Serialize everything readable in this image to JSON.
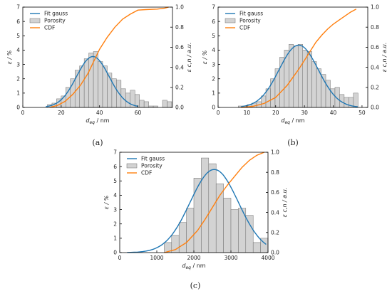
{
  "chart_data": [
    {
      "type": "bar",
      "panel_label": "(a)",
      "xlabel_base": "d",
      "xlabel_sub": "eq",
      "xlabel_unit": " / nm",
      "ylabel_left": "ε / %",
      "ylabel_right": "ε c,n / a.u.",
      "xlim": [
        0,
        78
      ],
      "ylim_left": [
        0,
        7
      ],
      "ylim_right": [
        0,
        1.0
      ],
      "xticks": [
        0,
        20,
        40,
        60
      ],
      "yticks_left": [
        0,
        1,
        2,
        3,
        4,
        5,
        6,
        7
      ],
      "yticks_right": [
        "0.0",
        "0.2",
        "0.4",
        "0.6",
        "0.8",
        "1.0"
      ],
      "legend": [
        "Fit gauss",
        "Porosity",
        "CDF"
      ],
      "legend_position": "top-left",
      "bin_width": 2.4,
      "bins_x": [
        14.0,
        16.4,
        18.8,
        21.2,
        23.6,
        26.0,
        28.4,
        30.8,
        33.2,
        35.6,
        38.0,
        40.4,
        42.8,
        45.2,
        47.6,
        50.0,
        52.4,
        54.8,
        57.2,
        59.6,
        62.0,
        64.4,
        66.8,
        69.2,
        71.6,
        74.0,
        76.4
      ],
      "porosity": [
        0.2,
        0.3,
        0.6,
        0.8,
        1.4,
        2.0,
        2.6,
        2.9,
        3.4,
        3.8,
        3.9,
        3.2,
        2.9,
        2.4,
        2.0,
        1.9,
        1.3,
        1.0,
        1.2,
        0.9,
        0.5,
        0.4,
        0.1,
        0.1,
        0.0,
        0.5,
        0.4
      ],
      "gauss": {
        "mu": 36.5,
        "sigma": 8.5,
        "amp": 3.55,
        "xmin": 12,
        "xmax": 60
      },
      "cdf_x": [
        14,
        18,
        22,
        26,
        30,
        34,
        38,
        40,
        44,
        48,
        52,
        56,
        60,
        64,
        70,
        74,
        76
      ],
      "cdf": [
        0.0,
        0.02,
        0.06,
        0.13,
        0.22,
        0.34,
        0.5,
        0.58,
        0.7,
        0.8,
        0.88,
        0.93,
        0.97,
        0.975,
        0.98,
        0.99,
        1.0
      ]
    },
    {
      "type": "bar",
      "panel_label": "(b)",
      "xlabel_base": "d",
      "xlabel_sub": "eq",
      "xlabel_unit": " / nm",
      "ylabel_left": "ε / %",
      "ylabel_right": "ε c,n / a.u.",
      "xlim": [
        0,
        52
      ],
      "ylim_left": [
        0,
        7
      ],
      "ylim_right": [
        0,
        1.0
      ],
      "xticks": [
        0,
        10,
        20,
        30,
        40,
        50
      ],
      "yticks_left": [
        0,
        1,
        2,
        3,
        4,
        5,
        6,
        7
      ],
      "yticks_right": [
        "0.0",
        "0.2",
        "0.4",
        "0.6",
        "0.8",
        "1.0"
      ],
      "legend": [
        "Fit gauss",
        "Porosity",
        "CDF"
      ],
      "legend_position": "top-left",
      "bin_width": 1.6,
      "bins_x": [
        7.8,
        9.4,
        11.0,
        12.6,
        14.2,
        15.8,
        17.4,
        19.0,
        20.6,
        22.2,
        23.8,
        25.4,
        27.0,
        28.6,
        30.2,
        31.8,
        33.4,
        35.0,
        36.6,
        38.2,
        39.8,
        41.4,
        43.0,
        44.6,
        46.2,
        47.8
      ],
      "porosity": [
        0.1,
        0.1,
        0.2,
        0.3,
        0.4,
        0.8,
        1.3,
        2.0,
        2.7,
        3.5,
        4.0,
        4.4,
        4.3,
        4.4,
        4.0,
        3.9,
        3.2,
        2.7,
        2.3,
        1.9,
        1.3,
        1.4,
        0.9,
        0.7,
        0.7,
        1.0
      ],
      "gauss": {
        "mu": 28.0,
        "sigma": 6.8,
        "amp": 4.35,
        "xmin": 8,
        "xmax": 48.5
      },
      "cdf_x": [
        8,
        12,
        16,
        20,
        24,
        26,
        28,
        30,
        32,
        34,
        36,
        38,
        40,
        42,
        44,
        46,
        48
      ],
      "cdf": [
        0.0,
        0.01,
        0.04,
        0.1,
        0.22,
        0.3,
        0.38,
        0.47,
        0.56,
        0.65,
        0.72,
        0.78,
        0.83,
        0.87,
        0.91,
        0.95,
        0.98
      ]
    },
    {
      "type": "bar",
      "panel_label": "(c)",
      "xlabel_base": "d",
      "xlabel_sub": "eq",
      "xlabel_unit": " / nm",
      "ylabel_left": "ε / %",
      "ylabel_right": "ε c,n / a.u.",
      "xlim": [
        0,
        4000
      ],
      "ylim_left": [
        0,
        7
      ],
      "ylim_right": [
        0,
        1.0
      ],
      "xticks": [
        0,
        1000,
        2000,
        3000,
        4000
      ],
      "yticks_left": [
        0,
        1,
        2,
        3,
        4,
        5,
        6,
        7
      ],
      "yticks_right": [
        "0.0",
        "0.2",
        "0.4",
        "0.6",
        "0.8",
        "1.0"
      ],
      "legend": [
        "Fit gauss",
        "Porosity",
        "CDF"
      ],
      "legend_position": "top-left",
      "bin_width": 200,
      "bins_x": [
        1300,
        1500,
        1700,
        1900,
        2100,
        2300,
        2500,
        2700,
        2900,
        3100,
        3300,
        3500,
        3700,
        3900
      ],
      "porosity": [
        0.7,
        1.2,
        2.1,
        3.1,
        5.2,
        6.6,
        6.2,
        4.8,
        3.8,
        3.0,
        3.1,
        2.6,
        0.7,
        1.0
      ],
      "gauss": {
        "mu": 2550,
        "sigma": 650,
        "amp": 5.8,
        "xmin": 200,
        "xmax": 3950
      },
      "cdf_x": [
        1200,
        1500,
        1800,
        2100,
        2300,
        2500,
        2700,
        2900,
        3100,
        3300,
        3500,
        3700,
        3900
      ],
      "cdf": [
        0.0,
        0.03,
        0.1,
        0.22,
        0.33,
        0.45,
        0.57,
        0.67,
        0.76,
        0.85,
        0.92,
        0.97,
        1.0
      ]
    }
  ],
  "colors": {
    "gauss": "#1f77b4",
    "cdf": "#ff7f0e",
    "bar_fill": "#d3d3d3",
    "bar_edge": "#6e6e6e"
  }
}
